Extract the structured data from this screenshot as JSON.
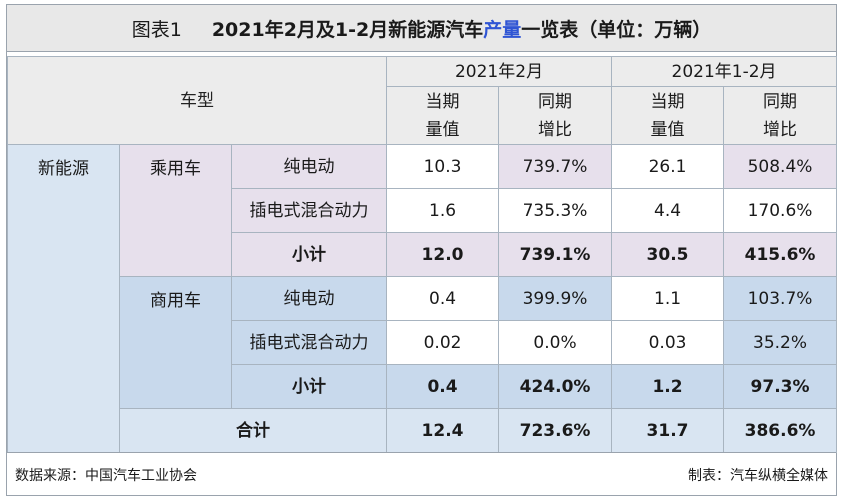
{
  "title": {
    "label": "图表1",
    "before": "2021年2月及1-2月新能源汽车",
    "accent": "产量",
    "after": "一览表（单位：万辆）"
  },
  "header": {
    "type_label": "车型",
    "period1": "2021年2月",
    "period2": "2021年1-2月",
    "sub": {
      "current_line1": "当期",
      "current_line2": "量值",
      "yoy_line1": "同期",
      "yoy_line2": "增比"
    }
  },
  "rows": {
    "category": "新能源",
    "passenger": {
      "label": "乘用车",
      "bev": {
        "name": "纯电动",
        "feb_value": "10.3",
        "feb_yoy": "739.7%",
        "ytd_value": "26.1",
        "ytd_yoy": "508.4%"
      },
      "phev": {
        "name": "插电式混合动力",
        "feb_value": "1.6",
        "feb_yoy": "735.3%",
        "ytd_value": "4.4",
        "ytd_yoy": "170.6%"
      },
      "subtotal": {
        "name": "小计",
        "feb_value": "12.0",
        "feb_yoy": "739.1%",
        "ytd_value": "30.5",
        "ytd_yoy": "415.6%"
      }
    },
    "commercial": {
      "label": "商用车",
      "bev": {
        "name": "纯电动",
        "feb_value": "0.4",
        "feb_yoy": "399.9%",
        "ytd_value": "1.1",
        "ytd_yoy": "103.7%"
      },
      "phev": {
        "name": "插电式混合动力",
        "feb_value": "0.02",
        "feb_yoy": "0.0%",
        "ytd_value": "0.03",
        "ytd_yoy": "35.2%"
      },
      "subtotal": {
        "name": "小计",
        "feb_value": "0.4",
        "feb_yoy": "424.0%",
        "ytd_value": "1.2",
        "ytd_yoy": "97.3%"
      }
    },
    "total": {
      "name": "合计",
      "feb_value": "12.4",
      "feb_yoy": "723.6%",
      "ytd_value": "31.7",
      "ytd_yoy": "386.6%"
    }
  },
  "footer": {
    "source": "数据来源：中国汽车工业协会",
    "made_by": "制表：汽车纵横全媒体"
  },
  "colors": {
    "header_bg": "#ececec",
    "category_blue": "#d9e5f2",
    "passenger_pink": "#e7e0ec",
    "commercial_blue": "#c8d9ec",
    "title_accent": "#2f55d4"
  }
}
